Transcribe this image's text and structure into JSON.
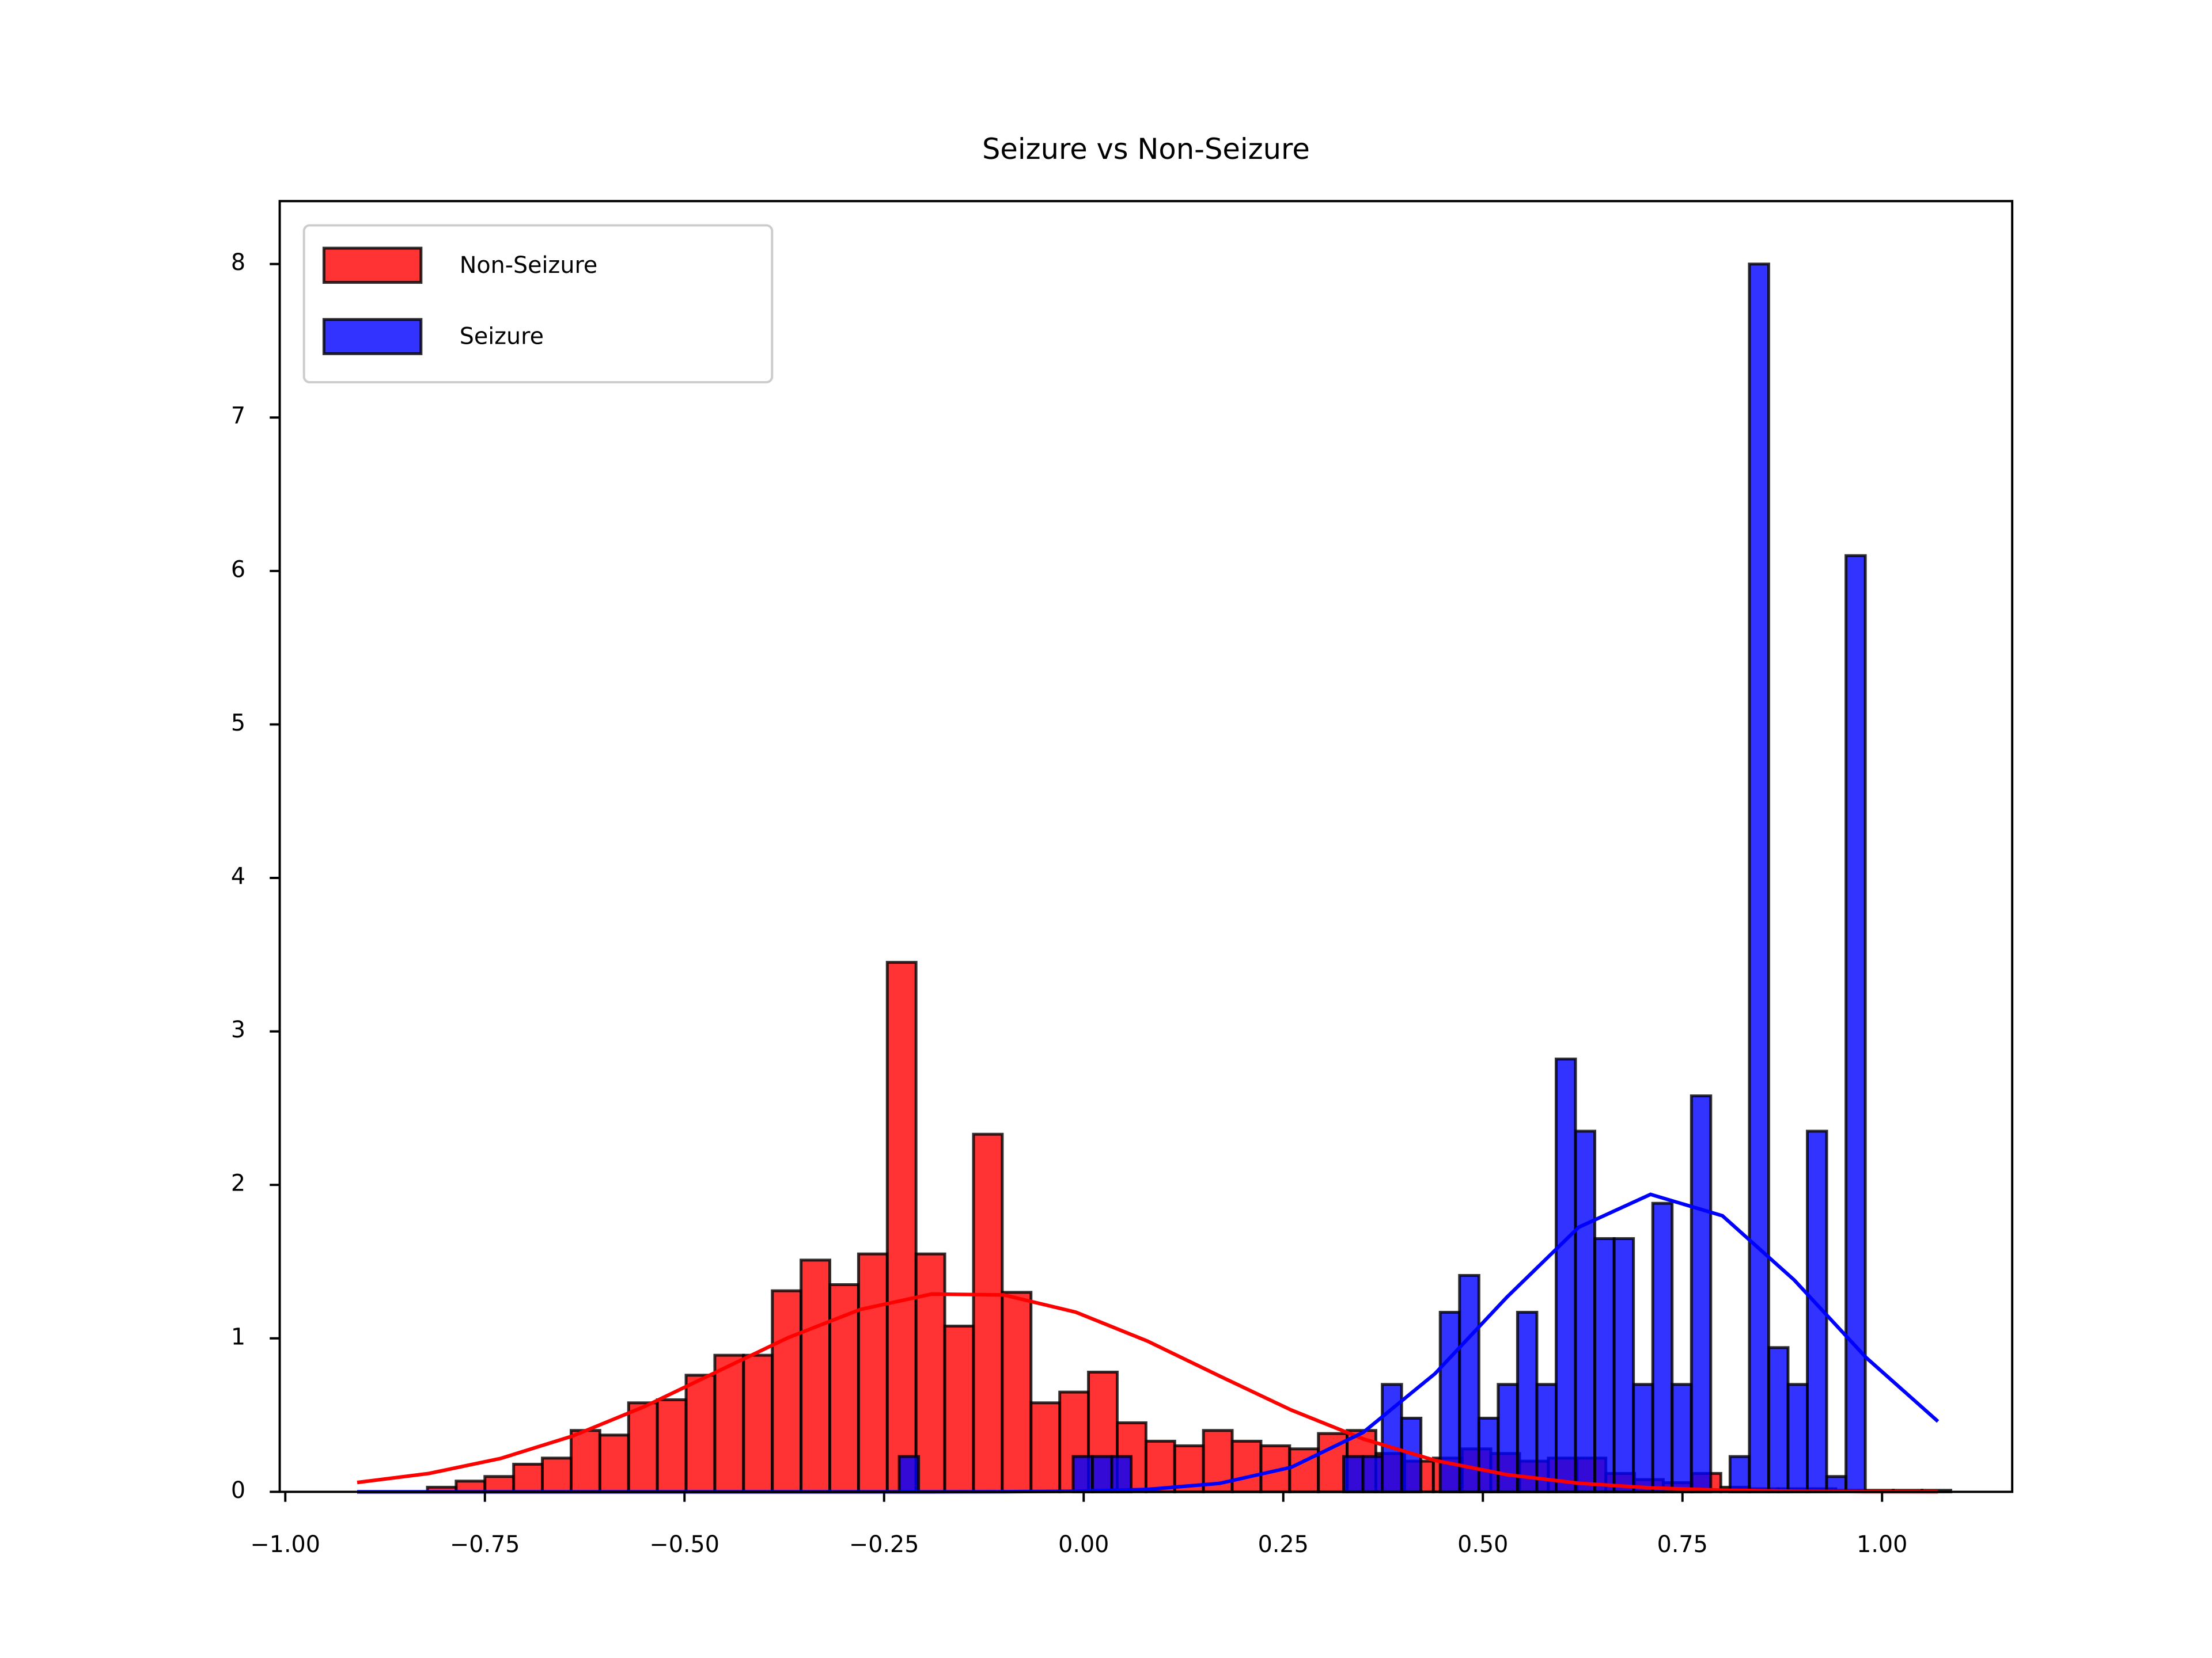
{
  "chart_data": {
    "type": "histogram",
    "title": "Seizure vs Non-Seizure",
    "xlim": [
      -1.007,
      1.163
    ],
    "ylim": [
      0,
      8.41
    ],
    "xticks": [
      {
        "value": -1.0,
        "label": "−1.00"
      },
      {
        "value": -0.75,
        "label": "−0.75"
      },
      {
        "value": -0.5,
        "label": "−0.50"
      },
      {
        "value": -0.25,
        "label": "−0.25"
      },
      {
        "value": 0.0,
        "label": "0.00"
      },
      {
        "value": 0.25,
        "label": "0.25"
      },
      {
        "value": 0.5,
        "label": "0.50"
      },
      {
        "value": 0.75,
        "label": "0.75"
      },
      {
        "value": 1.0,
        "label": "1.00"
      }
    ],
    "yticks": [
      0,
      1,
      2,
      3,
      4,
      5,
      6,
      7,
      8
    ],
    "legend": "upper left",
    "series": [
      {
        "name": "Non-Seizure",
        "color": "#ff0000",
        "bins": [
          -0.822,
          -0.786,
          -0.75,
          -0.714,
          -0.678,
          -0.642,
          -0.606,
          -0.57,
          -0.534,
          -0.498,
          -0.462,
          -0.426,
          -0.39,
          -0.354,
          -0.318,
          -0.282,
          -0.246,
          -0.21,
          -0.174,
          -0.138,
          -0.102,
          -0.066,
          -0.03,
          0.006,
          0.042,
          0.078,
          0.114,
          0.15,
          0.186,
          0.222,
          0.258,
          0.294,
          0.33,
          0.366,
          0.402,
          0.438,
          0.474,
          0.51,
          0.546,
          0.582,
          0.618,
          0.654,
          0.69,
          0.726,
          0.762,
          0.798,
          0.834,
          0.87,
          0.906,
          0.942,
          0.978,
          1.014,
          1.05,
          1.086
        ],
        "values": [
          0.03,
          0.07,
          0.1,
          0.18,
          0.22,
          0.4,
          0.37,
          0.58,
          0.6,
          0.76,
          0.89,
          0.89,
          1.31,
          1.51,
          1.35,
          1.55,
          3.45,
          1.55,
          1.08,
          2.33,
          1.3,
          0.58,
          0.65,
          0.78,
          0.45,
          0.33,
          0.3,
          0.4,
          0.33,
          0.3,
          0.28,
          0.38,
          0.4,
          0.25,
          0.2,
          0.22,
          0.28,
          0.25,
          0.2,
          0.22,
          0.22,
          0.12,
          0.08,
          0.06,
          0.12,
          0.03,
          0.02,
          0.02,
          0.02,
          0.01,
          0.01,
          0.01,
          0.01
        ]
      },
      {
        "name": "Seizure",
        "color": "#0000ff",
        "bins": [
          -0.231,
          -0.2068,
          -0.1826,
          -0.1584,
          -0.1342,
          -0.11,
          -0.0858,
          -0.0616,
          -0.0374,
          -0.0132,
          0.011,
          0.0352,
          0.0594,
          0.0836,
          0.1078,
          0.132,
          0.1562,
          0.1804,
          0.2046,
          0.2288,
          0.253,
          0.2772,
          0.3014,
          0.3256,
          0.3498,
          0.374,
          0.3982,
          0.4224,
          0.4466,
          0.4708,
          0.495,
          0.5192,
          0.5434,
          0.5676,
          0.5918,
          0.616,
          0.6402,
          0.6644,
          0.6886,
          0.7128,
          0.737,
          0.7612,
          0.7854,
          0.8096,
          0.8338,
          0.858,
          0.8822,
          0.9064,
          0.9306,
          0.9548,
          0.979
        ],
        "values": [
          0.23,
          0,
          0,
          0,
          0,
          0,
          0,
          0,
          0,
          0.23,
          0.23,
          0.23,
          0,
          0,
          0,
          0,
          0,
          0,
          0,
          0,
          0,
          0,
          0,
          0.23,
          0.23,
          0.7,
          0.48,
          0,
          1.17,
          1.41,
          0.48,
          0.7,
          1.17,
          0.7,
          2.82,
          2.35,
          1.65,
          1.65,
          0.7,
          1.88,
          0.7,
          2.58,
          0,
          0.23,
          8.0,
          0.94,
          0.7,
          2.35,
          0.1,
          6.1
        ]
      }
    ],
    "lines": [
      {
        "color": "#ff0000",
        "x": [
          -0.91,
          -0.82,
          -0.73,
          -0.64,
          -0.55,
          -0.46,
          -0.37,
          -0.28,
          -0.19,
          -0.1,
          -0.01,
          0.08,
          0.17,
          0.26,
          0.35,
          0.44,
          0.53,
          0.62,
          0.71,
          0.8,
          0.89,
          0.98,
          1.07
        ],
        "values": [
          0.061,
          0.12,
          0.218,
          0.364,
          0.556,
          0.781,
          1.005,
          1.188,
          1.289,
          1.283,
          1.171,
          0.982,
          0.755,
          0.533,
          0.345,
          0.205,
          0.112,
          0.056,
          0.026,
          0.011,
          0.004,
          0.001,
          0.0005
        ]
      },
      {
        "color": "#0000ff",
        "x": [
          -0.91,
          -0.82,
          -0.73,
          -0.64,
          -0.55,
          -0.46,
          -0.37,
          -0.28,
          -0.19,
          -0.1,
          -0.01,
          0.08,
          0.17,
          0.26,
          0.35,
          0.44,
          0.53,
          0.62,
          0.71,
          0.8,
          0.89,
          0.98,
          1.07
        ],
        "values": [
          0,
          0,
          0,
          0,
          0,
          0,
          0,
          2e-05,
          0.0001,
          0.0007,
          0.0036,
          0.016,
          0.055,
          0.16,
          0.387,
          0.77,
          1.268,
          1.724,
          1.938,
          1.799,
          1.38,
          0.875,
          0.459
        ]
      }
    ]
  }
}
